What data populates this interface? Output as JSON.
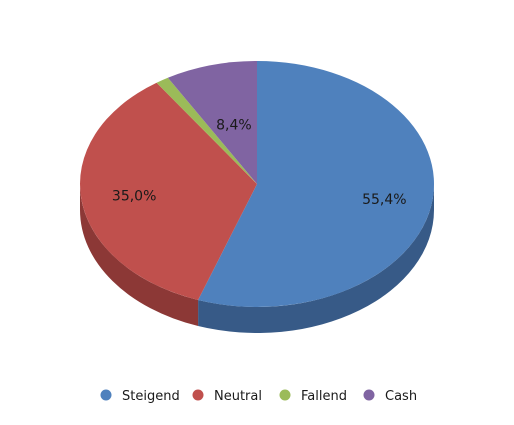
{
  "chart_data": {
    "type": "pie",
    "three_d": true,
    "legend_position": "bottom",
    "start": "top",
    "direction": "clockwise",
    "categories": [
      "Steigend",
      "Neutral",
      "Fallend",
      "Cash"
    ],
    "values": [
      55.4,
      35.0,
      1.2,
      8.4
    ],
    "data_labels": [
      "55,4%",
      "35,0%",
      "",
      "8,4%"
    ],
    "colors": [
      "#4F81BD",
      "#C0504D",
      "#9BBB59",
      "#8064A2"
    ],
    "side_colors": [
      "#375A87",
      "#8C3836",
      "#6F8A3E",
      "#5C4878"
    ]
  }
}
